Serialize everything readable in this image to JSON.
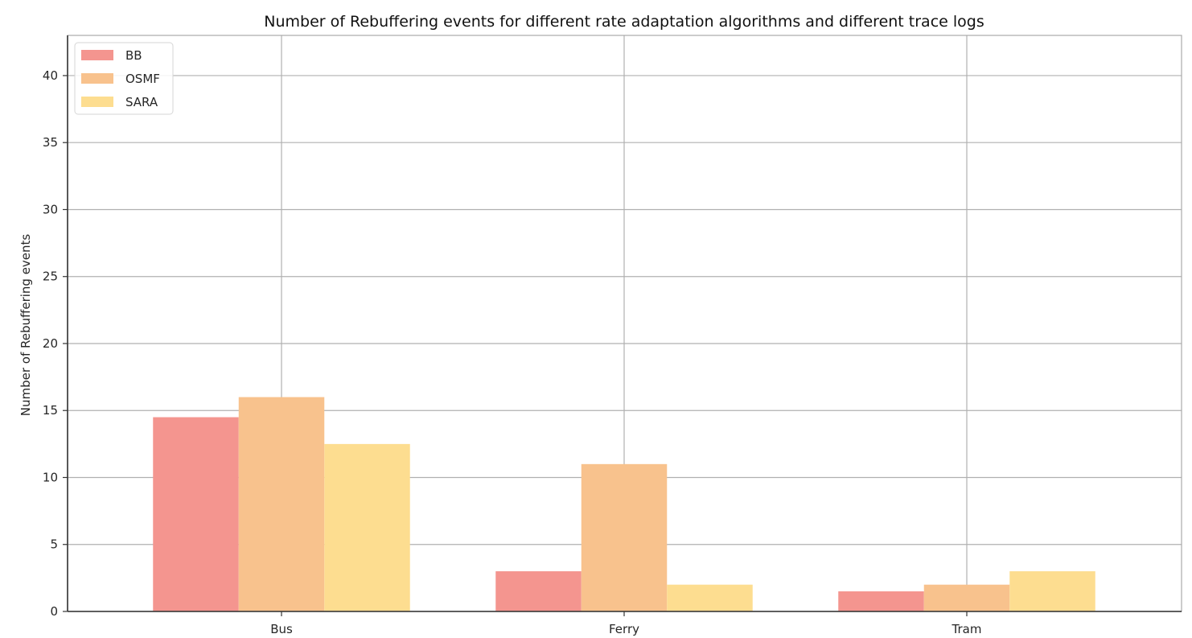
{
  "chart_data": {
    "type": "bar",
    "title": "Number of Rebuffering events for different rate adaptation algorithms and different trace logs",
    "xlabel": "",
    "ylabel": "Number of Rebuffering events",
    "categories": [
      "Bus",
      "Ferry",
      "Tram"
    ],
    "series": [
      {
        "name": "BB",
        "values": [
          14.5,
          3,
          1.5
        ],
        "color": "#f4958f"
      },
      {
        "name": "OSMF",
        "values": [
          16,
          11,
          2
        ],
        "color": "#f8c28d"
      },
      {
        "name": "SARA",
        "values": [
          12.5,
          2,
          3
        ],
        "color": "#fddd90"
      }
    ],
    "ylim": [
      0,
      43
    ],
    "yticks": [
      0,
      5,
      10,
      15,
      20,
      25,
      30,
      35,
      40
    ],
    "grid": true,
    "legend_position": "top-left"
  }
}
